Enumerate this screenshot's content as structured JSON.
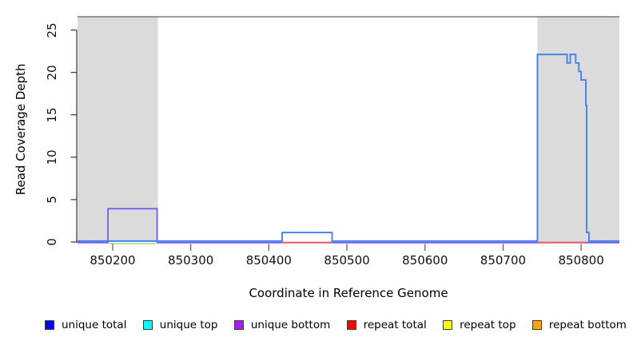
{
  "figure": {
    "xlabel": "Coordinate in Reference Genome",
    "ylabel": "Read Coverage Depth"
  },
  "legend": {
    "items": [
      {
        "label": "unique total",
        "swatch_color": "#0000FF"
      },
      {
        "label": "unique top",
        "swatch_color": "#00FFFF"
      },
      {
        "label": "unique bottom",
        "swatch_color": "#A020F0"
      },
      {
        "label": "repeat total",
        "swatch_color": "#FF0000"
      },
      {
        "label": "repeat top",
        "swatch_color": "#FFFF00"
      },
      {
        "label": "repeat bottom",
        "swatch_color": "#FFA500"
      }
    ]
  },
  "chart_data": {
    "type": "line",
    "subtype": "step-coverage",
    "title": "",
    "xlabel": "Coordinate in Reference Genome",
    "ylabel": "Read Coverage Depth",
    "xlim": [
      850155,
      850849
    ],
    "ylim": [
      0,
      26.6
    ],
    "x_ticks": [
      850200,
      850300,
      850400,
      850500,
      850600,
      850700,
      850800
    ],
    "y_ticks": [
      0,
      5,
      10,
      15,
      20,
      25
    ],
    "grid": false,
    "legend_position": "bottom",
    "colors": {
      "shaded_region": "#DBDBDB",
      "top_boundary_line": "#7F7F7F",
      "unique_total_line": "#3C7DF0",
      "unique_bottom_line": "#7A58EC",
      "green_baseline_segment": "#90DC90",
      "red_baseline_segment": "#F25B5B",
      "axis": "#333333"
    },
    "shaded_regions": [
      {
        "name": "left-gray-region",
        "x0": 850155,
        "x1": 850258
      },
      {
        "name": "right-gray-region",
        "x0": 850744,
        "x1": 850849
      }
    ],
    "top_boundary_line_y": 26.6,
    "series": [
      {
        "name": "unique total",
        "color": "#3C7DF0",
        "points": [
          [
            850155,
            0
          ],
          [
            850417,
            0
          ],
          [
            850417,
            1
          ],
          [
            850481,
            1
          ],
          [
            850481,
            0
          ],
          [
            850744,
            0
          ],
          [
            850744,
            22
          ],
          [
            850782,
            22
          ],
          [
            850782,
            21
          ],
          [
            850786,
            21
          ],
          [
            850786,
            22
          ],
          [
            850793,
            22
          ],
          [
            850793,
            21
          ],
          [
            850797,
            21
          ],
          [
            850797,
            20
          ],
          [
            850800,
            20
          ],
          [
            850800,
            19
          ],
          [
            850806,
            19
          ],
          [
            850806,
            16
          ],
          [
            850807,
            16
          ],
          [
            850807,
            1
          ],
          [
            850810,
            1
          ],
          [
            850810,
            0
          ],
          [
            850849,
            0
          ]
        ]
      },
      {
        "name": "unique bottom",
        "color": "#7A58EC",
        "points": [
          [
            850155,
            0
          ],
          [
            850194,
            0
          ],
          [
            850194,
            4
          ],
          [
            850257,
            4
          ],
          [
            850257,
            0
          ],
          [
            850849,
            0
          ]
        ]
      }
    ],
    "baseline_segments": [
      {
        "color": "#90DC90",
        "x0": 850196,
        "x1": 850255,
        "y": 0
      },
      {
        "color": "#F25B5B",
        "x0": 850417,
        "x1": 850481,
        "y": 0
      },
      {
        "color": "#F25B5B",
        "x0": 850745,
        "x1": 850806,
        "y": 0
      }
    ]
  }
}
